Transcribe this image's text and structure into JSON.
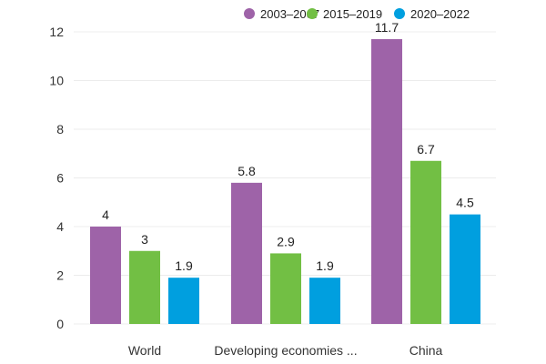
{
  "chart_data": {
    "type": "bar",
    "title": "",
    "xlabel": "",
    "ylabel": "",
    "categories": [
      "World",
      "Developing economies ...",
      "China"
    ],
    "series": [
      {
        "name": "2003–2007",
        "color": "#9e63a8",
        "values": [
          4,
          5.8,
          11.7
        ]
      },
      {
        "name": "2015–2019",
        "color": "#72bf44",
        "values": [
          3,
          2.9,
          6.7
        ]
      },
      {
        "name": "2020–2022",
        "color": "#009fdf",
        "values": [
          1.9,
          1.9,
          4.5
        ]
      }
    ],
    "ylim": [
      0,
      12
    ],
    "yticks": [
      0,
      2,
      4,
      6,
      8,
      10,
      12
    ],
    "grid": true,
    "legend_position": "top-right",
    "data_labels": true
  }
}
